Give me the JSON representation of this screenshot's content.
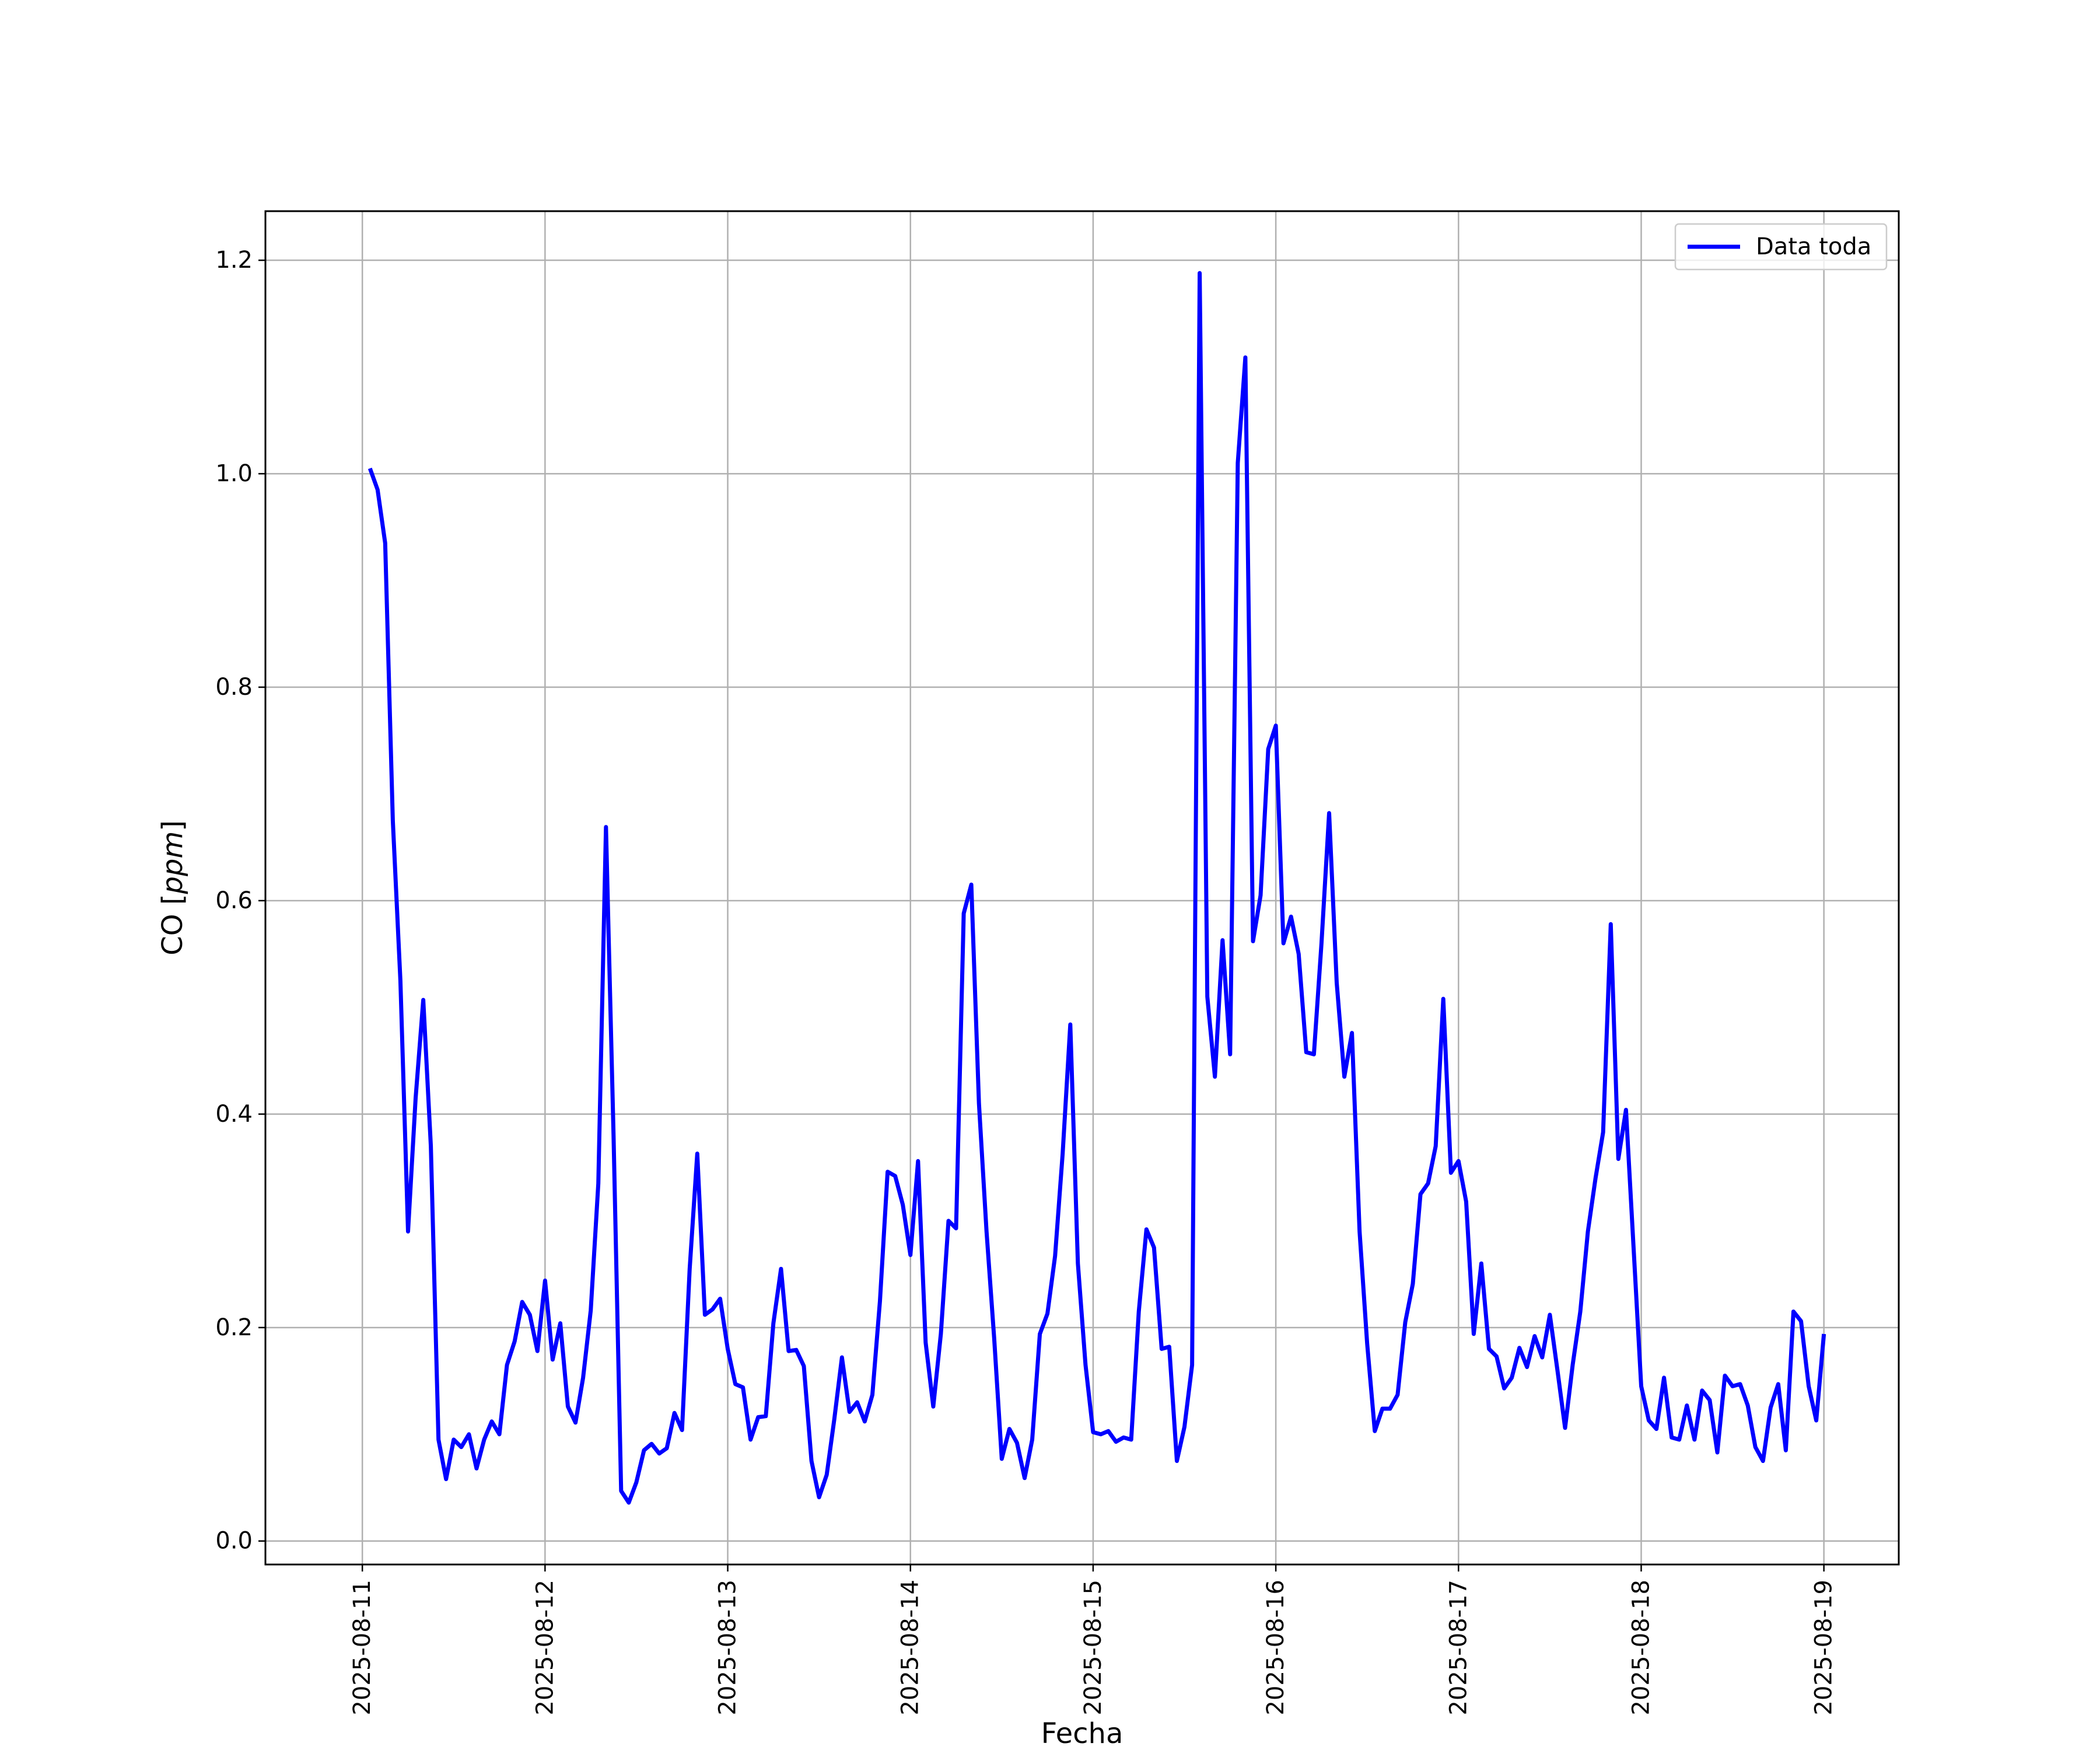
{
  "chart_data": {
    "type": "line",
    "title": "",
    "xlabel": "Fecha",
    "ylabel": "CO [ppm]",
    "ylabel_parts": {
      "prefix": "CO [",
      "unit": "ppm",
      "suffix": "]"
    },
    "x_type": "datetime",
    "x_ticks": [
      "2025-08-11",
      "2025-08-12",
      "2025-08-13",
      "2025-08-14",
      "2025-08-15",
      "2025-08-16",
      "2025-08-17",
      "2025-08-18",
      "2025-08-19"
    ],
    "y_ticks": [
      "0.0",
      "0.2",
      "0.4",
      "0.6",
      "0.8",
      "1.0",
      "1.2"
    ],
    "xlim": [
      "2025-08-10 11:16",
      "2025-08-19 09:50"
    ],
    "ylim": [
      -0.022,
      1.246
    ],
    "grid": true,
    "legend_position": "top-right",
    "series": [
      {
        "name": "Data toda",
        "color": "#0000ff",
        "x": [
          "2025-08-11 01:00",
          "2025-08-11 02:00",
          "2025-08-11 03:00",
          "2025-08-11 04:00",
          "2025-08-11 05:00",
          "2025-08-11 06:00",
          "2025-08-11 07:00",
          "2025-08-11 08:00",
          "2025-08-11 09:00",
          "2025-08-11 10:00",
          "2025-08-11 11:00",
          "2025-08-11 12:00",
          "2025-08-11 13:00",
          "2025-08-11 14:00",
          "2025-08-11 15:00",
          "2025-08-11 16:00",
          "2025-08-11 17:00",
          "2025-08-11 18:00",
          "2025-08-11 19:00",
          "2025-08-11 20:00",
          "2025-08-11 21:00",
          "2025-08-11 22:00",
          "2025-08-11 23:00",
          "2025-08-12 00:00",
          "2025-08-12 01:00",
          "2025-08-12 02:00",
          "2025-08-12 03:00",
          "2025-08-12 04:00",
          "2025-08-12 05:00",
          "2025-08-12 06:00",
          "2025-08-12 07:00",
          "2025-08-12 08:00",
          "2025-08-12 09:00",
          "2025-08-12 10:00",
          "2025-08-12 11:00",
          "2025-08-12 12:00",
          "2025-08-12 13:00",
          "2025-08-12 14:00",
          "2025-08-12 15:00",
          "2025-08-12 16:00",
          "2025-08-12 17:00",
          "2025-08-12 18:00",
          "2025-08-12 19:00",
          "2025-08-12 20:00",
          "2025-08-12 21:00",
          "2025-08-12 22:00",
          "2025-08-12 23:00",
          "2025-08-13 00:00",
          "2025-08-13 01:00",
          "2025-08-13 02:00",
          "2025-08-13 03:00",
          "2025-08-13 04:00",
          "2025-08-13 05:00",
          "2025-08-13 06:00",
          "2025-08-13 07:00",
          "2025-08-13 08:00",
          "2025-08-13 09:00",
          "2025-08-13 10:00",
          "2025-08-13 11:00",
          "2025-08-13 12:00",
          "2025-08-13 13:00",
          "2025-08-13 14:00",
          "2025-08-13 15:00",
          "2025-08-13 16:00",
          "2025-08-13 17:00",
          "2025-08-13 18:00",
          "2025-08-13 19:00",
          "2025-08-13 20:00",
          "2025-08-13 21:00",
          "2025-08-13 22:00",
          "2025-08-13 23:00",
          "2025-08-14 00:00",
          "2025-08-14 01:00",
          "2025-08-14 02:00",
          "2025-08-14 03:00",
          "2025-08-14 04:00",
          "2025-08-14 05:00",
          "2025-08-14 06:00",
          "2025-08-14 07:00",
          "2025-08-14 08:00",
          "2025-08-14 09:00",
          "2025-08-14 10:00",
          "2025-08-14 11:00",
          "2025-08-14 12:00",
          "2025-08-14 13:00",
          "2025-08-14 14:00",
          "2025-08-14 15:00",
          "2025-08-14 16:00",
          "2025-08-14 17:00",
          "2025-08-14 18:00",
          "2025-08-14 19:00",
          "2025-08-14 20:00",
          "2025-08-14 21:00",
          "2025-08-14 22:00",
          "2025-08-14 23:00",
          "2025-08-15 00:00",
          "2025-08-15 01:00",
          "2025-08-15 02:00",
          "2025-08-15 03:00",
          "2025-08-15 04:00",
          "2025-08-15 05:00",
          "2025-08-15 06:00",
          "2025-08-15 07:00",
          "2025-08-15 08:00",
          "2025-08-15 09:00",
          "2025-08-15 10:00",
          "2025-08-15 11:00",
          "2025-08-15 12:00",
          "2025-08-15 13:00",
          "2025-08-15 14:00",
          "2025-08-15 15:00",
          "2025-08-15 16:00",
          "2025-08-15 17:00",
          "2025-08-15 18:00",
          "2025-08-15 19:00",
          "2025-08-15 20:00",
          "2025-08-15 21:00",
          "2025-08-15 22:00",
          "2025-08-15 23:00",
          "2025-08-16 00:00",
          "2025-08-16 01:00",
          "2025-08-16 02:00",
          "2025-08-16 03:00",
          "2025-08-16 04:00",
          "2025-08-16 05:00",
          "2025-08-16 06:00",
          "2025-08-16 07:00",
          "2025-08-16 08:00",
          "2025-08-16 09:00",
          "2025-08-16 10:00",
          "2025-08-16 11:00",
          "2025-08-16 12:00",
          "2025-08-16 13:00",
          "2025-08-16 14:00",
          "2025-08-16 15:00",
          "2025-08-16 16:00",
          "2025-08-16 17:00",
          "2025-08-16 18:00",
          "2025-08-16 19:00",
          "2025-08-16 20:00",
          "2025-08-16 21:00",
          "2025-08-16 22:00",
          "2025-08-16 23:00",
          "2025-08-17 00:00",
          "2025-08-17 01:00",
          "2025-08-17 02:00",
          "2025-08-17 03:00",
          "2025-08-17 04:00",
          "2025-08-17 05:00",
          "2025-08-17 06:00",
          "2025-08-17 07:00",
          "2025-08-17 08:00",
          "2025-08-17 09:00",
          "2025-08-17 10:00",
          "2025-08-17 11:00",
          "2025-08-17 12:00",
          "2025-08-17 13:00",
          "2025-08-17 14:00",
          "2025-08-17 15:00",
          "2025-08-17 16:00",
          "2025-08-17 17:00",
          "2025-08-17 18:00",
          "2025-08-17 19:00",
          "2025-08-17 20:00",
          "2025-08-17 21:00",
          "2025-08-17 22:00",
          "2025-08-17 23:00",
          "2025-08-18 00:00",
          "2025-08-18 01:00",
          "2025-08-18 02:00",
          "2025-08-18 03:00",
          "2025-08-18 04:00",
          "2025-08-18 05:00",
          "2025-08-18 06:00",
          "2025-08-18 07:00",
          "2025-08-18 08:00",
          "2025-08-18 09:00",
          "2025-08-18 10:00",
          "2025-08-18 11:00",
          "2025-08-18 12:00",
          "2025-08-18 13:00",
          "2025-08-18 14:00",
          "2025-08-18 15:00",
          "2025-08-18 16:00",
          "2025-08-18 17:00",
          "2025-08-18 18:00",
          "2025-08-18 19:00",
          "2025-08-18 20:00",
          "2025-08-18 21:00",
          "2025-08-18 22:00",
          "2025-08-18 23:00",
          "2025-08-19 00:00"
        ],
        "y": [
          1.005,
          0.985,
          0.935,
          0.675,
          0.525,
          0.29,
          0.415,
          0.507,
          0.37,
          0.095,
          0.058,
          0.095,
          0.088,
          0.1,
          0.068,
          0.095,
          0.112,
          0.1,
          0.165,
          0.187,
          0.224,
          0.212,
          0.178,
          0.244,
          0.17,
          0.204,
          0.126,
          0.111,
          0.153,
          0.216,
          0.335,
          0.669,
          0.38,
          0.047,
          0.036,
          0.055,
          0.085,
          0.091,
          0.082,
          0.087,
          0.12,
          0.104,
          0.255,
          0.363,
          0.212,
          0.217,
          0.227,
          0.18,
          0.147,
          0.144,
          0.095,
          0.116,
          0.117,
          0.204,
          0.255,
          0.178,
          0.179,
          0.164,
          0.075,
          0.041,
          0.062,
          0.114,
          0.172,
          0.121,
          0.13,
          0.112,
          0.137,
          0.225,
          0.346,
          0.342,
          0.315,
          0.268,
          0.356,
          0.186,
          0.126,
          0.194,
          0.3,
          0.293,
          0.588,
          0.615,
          0.41,
          0.29,
          0.19,
          0.077,
          0.105,
          0.092,
          0.059,
          0.095,
          0.194,
          0.213,
          0.267,
          0.363,
          0.484,
          0.26,
          0.165,
          0.102,
          0.1,
          0.103,
          0.093,
          0.097,
          0.095,
          0.215,
          0.292,
          0.275,
          0.18,
          0.182,
          0.075,
          0.107,
          0.165,
          1.188,
          0.51,
          0.435,
          0.563,
          0.456,
          1.01,
          1.109,
          0.562,
          0.605,
          0.742,
          0.764,
          0.56,
          0.585,
          0.55,
          0.458,
          0.456,
          0.56,
          0.682,
          0.523,
          0.435,
          0.476,
          0.29,
          0.185,
          0.103,
          0.124,
          0.124,
          0.137,
          0.205,
          0.241,
          0.325,
          0.335,
          0.37,
          0.508,
          0.345,
          0.356,
          0.318,
          0.194,
          0.26,
          0.18,
          0.173,
          0.143,
          0.153,
          0.181,
          0.163,
          0.192,
          0.172,
          0.212,
          0.16,
          0.106,
          0.165,
          0.215,
          0.29,
          0.34,
          0.383,
          0.578,
          0.358,
          0.404,
          0.275,
          0.145,
          0.113,
          0.105,
          0.153,
          0.097,
          0.095,
          0.127,
          0.095,
          0.141,
          0.132,
          0.083,
          0.155,
          0.145,
          0.147,
          0.127,
          0.088,
          0.075,
          0.125,
          0.147,
          0.085,
          0.215,
          0.206,
          0.145,
          0.113,
          0.194
        ]
      }
    ]
  }
}
